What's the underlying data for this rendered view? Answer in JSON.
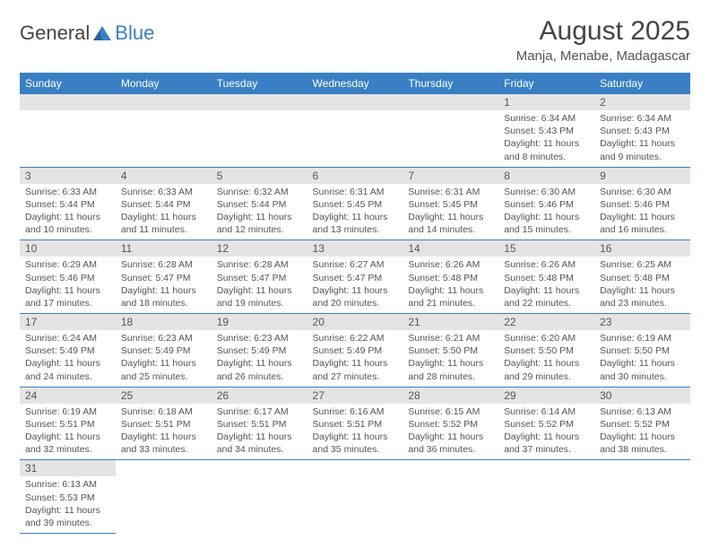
{
  "logo": {
    "text1": "General",
    "text2": "Blue"
  },
  "title": "August 2025",
  "subtitle": "Manja, Menabe, Madagascar",
  "colors": {
    "header_bg": "#3a7fc4",
    "header_fg": "#ffffff",
    "daynum_bg": "#e4e4e4",
    "border": "#3a7fc4",
    "text": "#555555",
    "background": "#ffffff"
  },
  "day_headers": [
    "Sunday",
    "Monday",
    "Tuesday",
    "Wednesday",
    "Thursday",
    "Friday",
    "Saturday"
  ],
  "weeks": [
    [
      null,
      null,
      null,
      null,
      null,
      {
        "n": "1",
        "sr": "6:34 AM",
        "ss": "5:43 PM",
        "dl": "11 hours and 8 minutes."
      },
      {
        "n": "2",
        "sr": "6:34 AM",
        "ss": "5:43 PM",
        "dl": "11 hours and 9 minutes."
      }
    ],
    [
      {
        "n": "3",
        "sr": "6:33 AM",
        "ss": "5:44 PM",
        "dl": "11 hours and 10 minutes."
      },
      {
        "n": "4",
        "sr": "6:33 AM",
        "ss": "5:44 PM",
        "dl": "11 hours and 11 minutes."
      },
      {
        "n": "5",
        "sr": "6:32 AM",
        "ss": "5:44 PM",
        "dl": "11 hours and 12 minutes."
      },
      {
        "n": "6",
        "sr": "6:31 AM",
        "ss": "5:45 PM",
        "dl": "11 hours and 13 minutes."
      },
      {
        "n": "7",
        "sr": "6:31 AM",
        "ss": "5:45 PM",
        "dl": "11 hours and 14 minutes."
      },
      {
        "n": "8",
        "sr": "6:30 AM",
        "ss": "5:46 PM",
        "dl": "11 hours and 15 minutes."
      },
      {
        "n": "9",
        "sr": "6:30 AM",
        "ss": "5:46 PM",
        "dl": "11 hours and 16 minutes."
      }
    ],
    [
      {
        "n": "10",
        "sr": "6:29 AM",
        "ss": "5:46 PM",
        "dl": "11 hours and 17 minutes."
      },
      {
        "n": "11",
        "sr": "6:28 AM",
        "ss": "5:47 PM",
        "dl": "11 hours and 18 minutes."
      },
      {
        "n": "12",
        "sr": "6:28 AM",
        "ss": "5:47 PM",
        "dl": "11 hours and 19 minutes."
      },
      {
        "n": "13",
        "sr": "6:27 AM",
        "ss": "5:47 PM",
        "dl": "11 hours and 20 minutes."
      },
      {
        "n": "14",
        "sr": "6:26 AM",
        "ss": "5:48 PM",
        "dl": "11 hours and 21 minutes."
      },
      {
        "n": "15",
        "sr": "6:26 AM",
        "ss": "5:48 PM",
        "dl": "11 hours and 22 minutes."
      },
      {
        "n": "16",
        "sr": "6:25 AM",
        "ss": "5:48 PM",
        "dl": "11 hours and 23 minutes."
      }
    ],
    [
      {
        "n": "17",
        "sr": "6:24 AM",
        "ss": "5:49 PM",
        "dl": "11 hours and 24 minutes."
      },
      {
        "n": "18",
        "sr": "6:23 AM",
        "ss": "5:49 PM",
        "dl": "11 hours and 25 minutes."
      },
      {
        "n": "19",
        "sr": "6:23 AM",
        "ss": "5:49 PM",
        "dl": "11 hours and 26 minutes."
      },
      {
        "n": "20",
        "sr": "6:22 AM",
        "ss": "5:49 PM",
        "dl": "11 hours and 27 minutes."
      },
      {
        "n": "21",
        "sr": "6:21 AM",
        "ss": "5:50 PM",
        "dl": "11 hours and 28 minutes."
      },
      {
        "n": "22",
        "sr": "6:20 AM",
        "ss": "5:50 PM",
        "dl": "11 hours and 29 minutes."
      },
      {
        "n": "23",
        "sr": "6:19 AM",
        "ss": "5:50 PM",
        "dl": "11 hours and 30 minutes."
      }
    ],
    [
      {
        "n": "24",
        "sr": "6:19 AM",
        "ss": "5:51 PM",
        "dl": "11 hours and 32 minutes."
      },
      {
        "n": "25",
        "sr": "6:18 AM",
        "ss": "5:51 PM",
        "dl": "11 hours and 33 minutes."
      },
      {
        "n": "26",
        "sr": "6:17 AM",
        "ss": "5:51 PM",
        "dl": "11 hours and 34 minutes."
      },
      {
        "n": "27",
        "sr": "6:16 AM",
        "ss": "5:51 PM",
        "dl": "11 hours and 35 minutes."
      },
      {
        "n": "28",
        "sr": "6:15 AM",
        "ss": "5:52 PM",
        "dl": "11 hours and 36 minutes."
      },
      {
        "n": "29",
        "sr": "6:14 AM",
        "ss": "5:52 PM",
        "dl": "11 hours and 37 minutes."
      },
      {
        "n": "30",
        "sr": "6:13 AM",
        "ss": "5:52 PM",
        "dl": "11 hours and 38 minutes."
      }
    ],
    [
      {
        "n": "31",
        "sr": "6:13 AM",
        "ss": "5:53 PM",
        "dl": "11 hours and 39 minutes."
      },
      null,
      null,
      null,
      null,
      null,
      null
    ]
  ],
  "labels": {
    "sunrise": "Sunrise:",
    "sunset": "Sunset:",
    "daylight": "Daylight:"
  }
}
